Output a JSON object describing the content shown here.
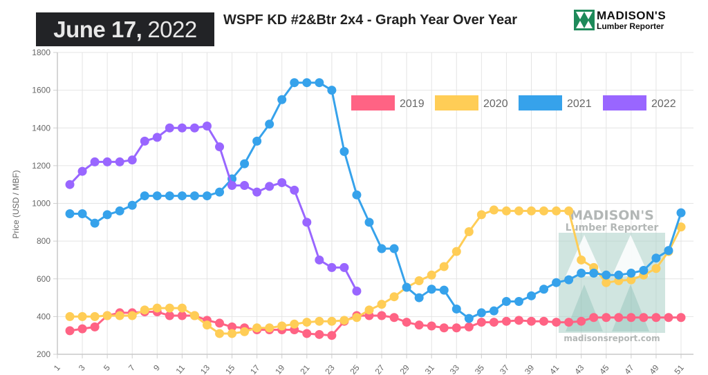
{
  "header": {
    "date_bold": "June 17,",
    "date_light": "2022",
    "title": "WSPF KD #2&Btr 2x4 - Graph Year Over Year",
    "logo_line1": "MADISON'S",
    "logo_line2": "Lumber Reporter",
    "logo_color": "#1e8a5a"
  },
  "watermark": {
    "line1": "MADISON'S",
    "line2": "Lumber Reporter",
    "url": "madisonsreport.com"
  },
  "chart_data": {
    "type": "line",
    "title": "WSPF KD #2&Btr 2x4 - Graph Year Over Year",
    "xlabel": "",
    "ylabel": "Price (USD / MBF)",
    "ylim": [
      200,
      1800
    ],
    "yticks": [
      200,
      400,
      600,
      800,
      1000,
      1200,
      1400,
      1600,
      1800
    ],
    "xlim": [
      1,
      52
    ],
    "xticks": [
      1,
      3,
      5,
      7,
      9,
      11,
      13,
      15,
      17,
      19,
      21,
      23,
      25,
      27,
      29,
      31,
      33,
      35,
      37,
      39,
      41,
      43,
      45,
      47,
      49,
      51
    ],
    "grid": true,
    "legend_position": "top-right",
    "series": [
      {
        "name": "2019",
        "color": "#ff6384",
        "start_week": 2,
        "values": [
          325,
          335,
          345,
          405,
          420,
          420,
          425,
          425,
          405,
          405,
          405,
          380,
          365,
          345,
          340,
          330,
          330,
          330,
          330,
          310,
          305,
          300,
          375,
          405,
          405,
          405,
          395,
          370,
          355,
          350,
          340,
          340,
          345,
          370,
          370,
          375,
          380,
          375,
          375,
          370,
          370,
          375,
          395,
          395,
          395,
          395,
          395,
          395,
          395,
          395
        ]
      },
      {
        "name": "2020",
        "color": "#ffcd56",
        "start_week": 2,
        "values": [
          400,
          400,
          400,
          405,
          405,
          405,
          435,
          445,
          445,
          445,
          405,
          355,
          310,
          310,
          320,
          340,
          340,
          350,
          360,
          370,
          375,
          375,
          380,
          395,
          435,
          465,
          505,
          555,
          590,
          620,
          665,
          745,
          850,
          940,
          965,
          960,
          960,
          960,
          960,
          960,
          960,
          700,
          660,
          580,
          590,
          595,
          620,
          655,
          745,
          875
        ]
      },
      {
        "name": "2021",
        "color": "#36a2eb",
        "start_week": 2,
        "values": [
          945,
          945,
          895,
          940,
          960,
          990,
          1040,
          1040,
          1040,
          1040,
          1040,
          1040,
          1060,
          1130,
          1210,
          1330,
          1420,
          1550,
          1640,
          1640,
          1640,
          1600,
          1275,
          1045,
          900,
          760,
          760,
          555,
          500,
          545,
          540,
          440,
          390,
          420,
          430,
          480,
          480,
          510,
          545,
          580,
          595,
          630,
          630,
          620,
          620,
          630,
          645,
          710,
          750,
          950
        ]
      },
      {
        "name": "2022",
        "color": "#9966ff",
        "start_week": 2,
        "values": [
          1100,
          1170,
          1220,
          1220,
          1220,
          1230,
          1330,
          1350,
          1400,
          1400,
          1400,
          1410,
          1300,
          1095,
          1095,
          1060,
          1090,
          1110,
          1070,
          900,
          700,
          660,
          660,
          535
        ]
      }
    ]
  }
}
